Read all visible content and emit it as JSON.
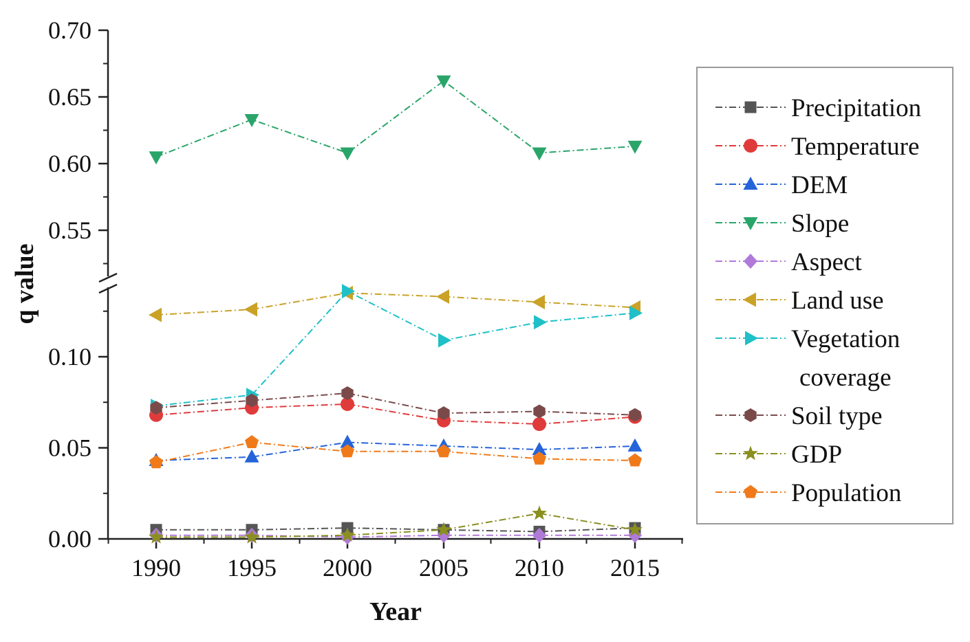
{
  "chart_data": {
    "type": "line",
    "title": "",
    "xlabel": "Year",
    "ylabel": "q value",
    "categories": [
      "1990",
      "1995",
      "2000",
      "2005",
      "2010",
      "2015"
    ],
    "y_axis_break": {
      "lower_range": [
        0.0,
        0.14
      ],
      "upper_range": [
        0.52,
        0.7
      ],
      "lower_ticks": [
        "0.00",
        "0.05",
        "0.10"
      ],
      "upper_ticks": [
        "0.55",
        "0.60",
        "0.65",
        "0.70"
      ]
    },
    "legend_position": "right",
    "series": [
      {
        "name": "Precipitation",
        "marker": "square",
        "color": "#555555",
        "values": [
          0.005,
          0.005,
          0.006,
          0.005,
          0.004,
          0.006
        ]
      },
      {
        "name": "Temperature",
        "marker": "circle",
        "color": "#e03b3b",
        "values": [
          0.068,
          0.072,
          0.074,
          0.065,
          0.063,
          0.067
        ]
      },
      {
        "name": "DEM",
        "marker": "triangle-up",
        "color": "#2563d9",
        "values": [
          0.043,
          0.045,
          0.053,
          0.051,
          0.049,
          0.051
        ]
      },
      {
        "name": "Slope",
        "marker": "triangle-down",
        "color": "#2aa56a",
        "values": [
          0.605,
          0.633,
          0.608,
          0.662,
          0.608,
          0.613
        ]
      },
      {
        "name": "Aspect",
        "marker": "diamond",
        "color": "#b07ad9",
        "values": [
          0.002,
          0.002,
          0.001,
          0.002,
          0.002,
          0.002
        ]
      },
      {
        "name": "Land use",
        "marker": "triangle-left",
        "color": "#c9a227",
        "values": [
          0.123,
          0.126,
          0.135,
          0.133,
          0.13,
          0.127
        ]
      },
      {
        "name": "Vegetation",
        "name_line2": "coverage",
        "marker": "triangle-right",
        "color": "#1fc0c8",
        "values": [
          0.073,
          0.079,
          0.136,
          0.109,
          0.119,
          0.124
        ]
      },
      {
        "name": "Soil type",
        "marker": "hexagon",
        "color": "#7a4a4a",
        "values": [
          0.072,
          0.076,
          0.08,
          0.069,
          0.07,
          0.068
        ]
      },
      {
        "name": "GDP",
        "marker": "star",
        "color": "#8a8f1f",
        "values": [
          0.001,
          0.001,
          0.002,
          0.005,
          0.014,
          0.005
        ]
      },
      {
        "name": "Population",
        "marker": "pentagon",
        "color": "#f07a1a",
        "values": [
          0.042,
          0.053,
          0.048,
          0.048,
          0.044,
          0.043
        ]
      }
    ]
  }
}
